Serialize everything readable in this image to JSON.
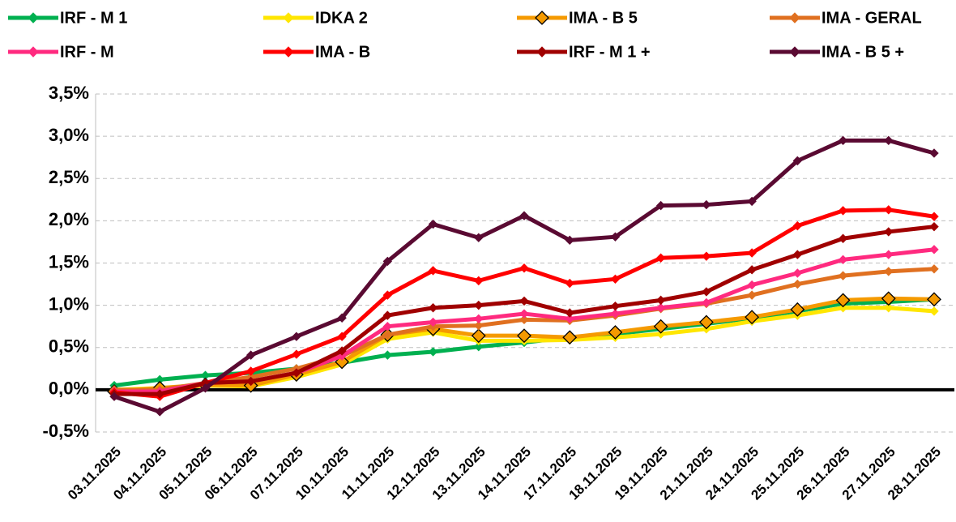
{
  "chart_data": {
    "type": "line",
    "categories": [
      "03.11.2025",
      "04.11.2025",
      "05.11.2025",
      "06.11.2025",
      "07.11.2025",
      "10.11.2025",
      "11.11.2025",
      "12.11.2025",
      "13.11.2025",
      "14.11.2025",
      "17.11.2025",
      "18.11.2025",
      "19.11.2025",
      "21.11.2025",
      "24.11.2025",
      "25.11.2025",
      "26.11.2025",
      "27.11.2025",
      "28.11.2025"
    ],
    "ylim": [
      -0.5,
      3.5
    ],
    "yticks": [
      {
        "value": -0.5,
        "label": "-0,5%"
      },
      {
        "value": 0,
        "label": "0,0%"
      },
      {
        "value": 0.5,
        "label": "0,5%"
      },
      {
        "value": 1,
        "label": "1,0%"
      },
      {
        "value": 1.5,
        "label": "1,5%"
      },
      {
        "value": 2,
        "label": "2,0%"
      },
      {
        "value": 2.5,
        "label": "2,5%"
      },
      {
        "value": 3,
        "label": "3,0%"
      },
      {
        "value": 3.5,
        "label": "3,5%"
      }
    ],
    "grid": true,
    "legend": "top",
    "series": [
      {
        "name": "IRF - M 1",
        "color": "#00b050",
        "marker": "diamond",
        "values": [
          0.05,
          0.12,
          0.17,
          0.2,
          0.25,
          0.32,
          0.41,
          0.45,
          0.51,
          0.56,
          0.62,
          0.66,
          0.72,
          0.78,
          0.85,
          0.93,
          1.02,
          1.04,
          1.07
        ]
      },
      {
        "name": "IDKA 2",
        "color": "#ffe600",
        "marker": "diamond",
        "values": [
          0.0,
          0.02,
          0.05,
          0.04,
          0.15,
          0.3,
          0.6,
          0.68,
          0.58,
          0.58,
          0.59,
          0.62,
          0.66,
          0.72,
          0.81,
          0.88,
          0.97,
          0.97,
          0.93
        ]
      },
      {
        "name": "IMA - B 5",
        "color": "#f59a00",
        "marker": "diamond-open",
        "values": [
          -0.02,
          0.02,
          0.06,
          0.05,
          0.18,
          0.33,
          0.65,
          0.72,
          0.64,
          0.64,
          0.62,
          0.68,
          0.75,
          0.8,
          0.86,
          0.95,
          1.06,
          1.08,
          1.07
        ]
      },
      {
        "name": "IMA - GERAL",
        "color": "#e07020",
        "marker": "diamond",
        "values": [
          0.0,
          0.0,
          0.08,
          0.15,
          0.25,
          0.4,
          0.65,
          0.75,
          0.76,
          0.83,
          0.82,
          0.88,
          0.96,
          1.02,
          1.12,
          1.25,
          1.35,
          1.4,
          1.43
        ]
      },
      {
        "name": "IRF - M",
        "color": "#ff2a7f",
        "marker": "diamond",
        "values": [
          -0.02,
          -0.02,
          0.08,
          0.1,
          0.2,
          0.4,
          0.75,
          0.8,
          0.84,
          0.9,
          0.84,
          0.9,
          0.97,
          1.03,
          1.24,
          1.38,
          1.54,
          1.6,
          1.66
        ]
      },
      {
        "name": "IMA - B",
        "color": "#ff0000",
        "marker": "diamond",
        "values": [
          -0.03,
          -0.08,
          0.08,
          0.22,
          0.42,
          0.63,
          1.12,
          1.41,
          1.29,
          1.44,
          1.26,
          1.31,
          1.56,
          1.58,
          1.62,
          1.94,
          2.12,
          2.13,
          2.05
        ]
      },
      {
        "name": "IRF - M 1 +",
        "color": "#a00000",
        "marker": "diamond",
        "values": [
          -0.05,
          -0.05,
          0.08,
          0.1,
          0.2,
          0.46,
          0.88,
          0.97,
          1.0,
          1.05,
          0.91,
          0.99,
          1.06,
          1.16,
          1.42,
          1.6,
          1.79,
          1.87,
          1.93
        ]
      },
      {
        "name": "IMA - B 5 +",
        "color": "#5a0a32",
        "marker": "diamond",
        "values": [
          -0.08,
          -0.26,
          0.02,
          0.41,
          0.63,
          0.85,
          1.52,
          1.96,
          1.8,
          2.06,
          1.77,
          1.81,
          2.18,
          2.19,
          2.23,
          2.71,
          2.95,
          2.95,
          2.8
        ]
      }
    ]
  }
}
